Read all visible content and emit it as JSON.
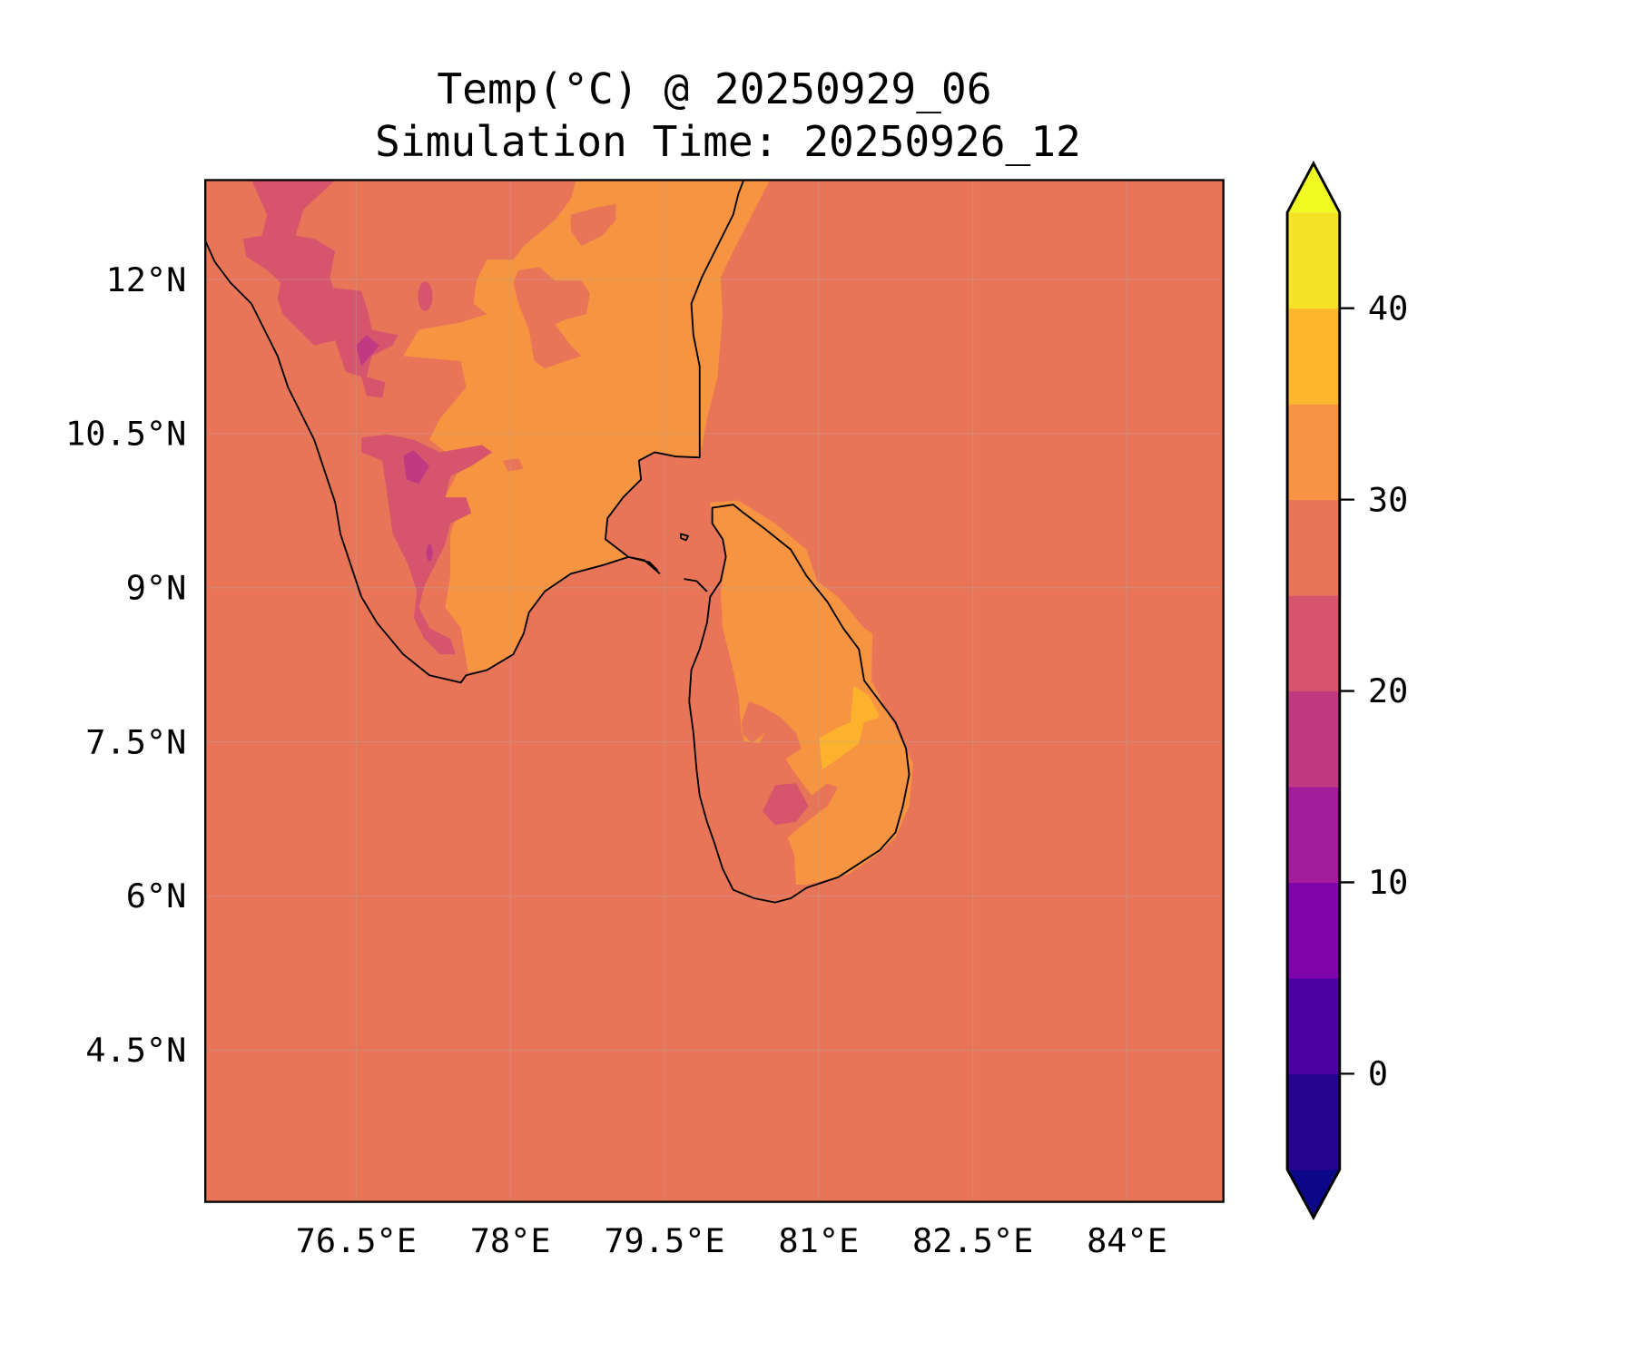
{
  "chart_data": {
    "type": "heatmap",
    "title": "Temp(°C) @ 20250929_06",
    "subtitle": "Simulation Time: 20250926_12",
    "xlim": [
      75,
      85
    ],
    "ylim": [
      3,
      13
    ],
    "grid": true,
    "xticks": [
      {
        "value": 76.5,
        "label": "76.5°E"
      },
      {
        "value": 78,
        "label": "78°E"
      },
      {
        "value": 79.5,
        "label": "79.5°E"
      },
      {
        "value": 81,
        "label": "81°E"
      },
      {
        "value": 82.5,
        "label": "82.5°E"
      },
      {
        "value": 84,
        "label": "84°E"
      }
    ],
    "yticks": [
      {
        "value": 12,
        "label": "12°N"
      },
      {
        "value": 10.5,
        "label": "10.5°N"
      },
      {
        "value": 9,
        "label": "9°N"
      },
      {
        "value": 7.5,
        "label": "7.5°N"
      },
      {
        "value": 6,
        "label": "6°N"
      },
      {
        "value": 4.5,
        "label": "4.5°N"
      }
    ],
    "colorbar": {
      "levels": [
        -5,
        0,
        5,
        10,
        15,
        20,
        25,
        30,
        35,
        40,
        45
      ],
      "colors": [
        "#25048f",
        "#4c02a1",
        "#7e03a8",
        "#a11b9b",
        "#c03a83",
        "#d6556d",
        "#e97558",
        "#f79342",
        "#fdb72f",
        "#f5e225"
      ],
      "under_color": "#0d0887",
      "over_color": "#f0f921",
      "ticks": [
        {
          "value": 0,
          "label": "0"
        },
        {
          "value": 10,
          "label": "10"
        },
        {
          "value": 20,
          "label": "20"
        },
        {
          "value": 30,
          "label": "30"
        },
        {
          "value": 40,
          "label": "40"
        }
      ],
      "extend": "both"
    },
    "field_summary": {
      "ocean_band": "25-30",
      "inland_band": "30-35",
      "highlands_band": "20-25",
      "hot_spot_band": "35-40"
    }
  }
}
